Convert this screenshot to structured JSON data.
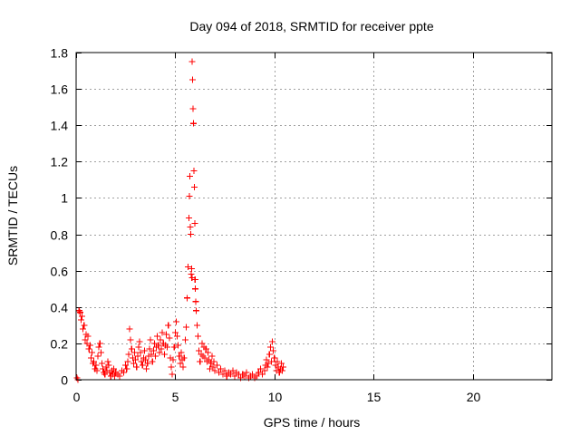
{
  "chart_data": {
    "type": "scatter",
    "title": "Day 094 of 2018, SRMTID for receiver ppte",
    "xlabel": "GPS time / hours",
    "ylabel": "SRMTID / TECUs",
    "xlim": [
      0,
      24
    ],
    "ylim": [
      0,
      1.8
    ],
    "xticks": [
      0,
      5,
      10,
      15,
      20
    ],
    "xtick_labels": [
      "0",
      "5",
      "10",
      "15",
      "20"
    ],
    "yticks": [
      0,
      0.2,
      0.4,
      0.6,
      0.8,
      1,
      1.2,
      1.4,
      1.6,
      1.8
    ],
    "ytick_labels": [
      "0",
      "0.2",
      "0.4",
      "0.6",
      "0.8",
      "1",
      "1.2",
      "1.4",
      "1.6",
      "1.8"
    ],
    "grid": true,
    "marker": "+",
    "series": [
      {
        "name": "SRMTID",
        "color": "#ff0000",
        "points": [
          [
            0.05,
            0.01
          ],
          [
            0.1,
            0.0
          ],
          [
            0.15,
            0.38
          ],
          [
            0.2,
            0.37
          ],
          [
            0.25,
            0.33
          ],
          [
            0.3,
            0.35
          ],
          [
            0.35,
            0.28
          ],
          [
            0.4,
            0.3
          ],
          [
            0.45,
            0.22
          ],
          [
            0.5,
            0.25
          ],
          [
            0.55,
            0.2
          ],
          [
            0.6,
            0.24
          ],
          [
            0.65,
            0.17
          ],
          [
            0.7,
            0.19
          ],
          [
            0.75,
            0.12
          ],
          [
            0.8,
            0.15
          ],
          [
            0.85,
            0.09
          ],
          [
            0.9,
            0.1
          ],
          [
            0.95,
            0.06
          ],
          [
            1.0,
            0.08
          ],
          [
            1.05,
            0.05
          ],
          [
            1.1,
            0.13
          ],
          [
            1.15,
            0.18
          ],
          [
            1.2,
            0.2
          ],
          [
            1.25,
            0.15
          ],
          [
            1.3,
            0.09
          ],
          [
            1.35,
            0.06
          ],
          [
            1.4,
            0.04
          ],
          [
            1.45,
            0.03
          ],
          [
            1.5,
            0.07
          ],
          [
            1.55,
            0.05
          ],
          [
            1.6,
            0.1
          ],
          [
            1.65,
            0.08
          ],
          [
            1.7,
            0.04
          ],
          [
            1.75,
            0.02
          ],
          [
            1.8,
            0.05
          ],
          [
            1.85,
            0.03
          ],
          [
            1.9,
            0.06
          ],
          [
            1.95,
            0.02
          ],
          [
            2.0,
            0.04
          ],
          [
            2.1,
            0.03
          ],
          [
            2.2,
            0.02
          ],
          [
            2.3,
            0.05
          ],
          [
            2.4,
            0.04
          ],
          [
            2.5,
            0.08
          ],
          [
            2.55,
            0.06
          ],
          [
            2.6,
            0.1
          ],
          [
            2.65,
            0.14
          ],
          [
            2.7,
            0.28
          ],
          [
            2.75,
            0.22
          ],
          [
            2.8,
            0.17
          ],
          [
            2.85,
            0.12
          ],
          [
            2.9,
            0.09
          ],
          [
            2.95,
            0.15
          ],
          [
            3.0,
            0.11
          ],
          [
            3.05,
            0.07
          ],
          [
            3.1,
            0.13
          ],
          [
            3.15,
            0.18
          ],
          [
            3.2,
            0.21
          ],
          [
            3.25,
            0.15
          ],
          [
            3.3,
            0.1
          ],
          [
            3.35,
            0.08
          ],
          [
            3.4,
            0.12
          ],
          [
            3.45,
            0.16
          ],
          [
            3.5,
            0.11
          ],
          [
            3.55,
            0.06
          ],
          [
            3.6,
            0.09
          ],
          [
            3.65,
            0.13
          ],
          [
            3.7,
            0.17
          ],
          [
            3.75,
            0.22
          ],
          [
            3.8,
            0.14
          ],
          [
            3.85,
            0.1
          ],
          [
            3.9,
            0.16
          ],
          [
            3.95,
            0.2
          ],
          [
            4.0,
            0.13
          ],
          [
            4.05,
            0.18
          ],
          [
            4.1,
            0.24
          ],
          [
            4.15,
            0.19
          ],
          [
            4.2,
            0.15
          ],
          [
            4.25,
            0.22
          ],
          [
            4.3,
            0.17
          ],
          [
            4.35,
            0.26
          ],
          [
            4.4,
            0.2
          ],
          [
            4.45,
            0.14
          ],
          [
            4.5,
            0.19
          ],
          [
            4.55,
            0.25
          ],
          [
            4.6,
            0.18
          ],
          [
            4.65,
            0.3
          ],
          [
            4.7,
            0.23
          ],
          [
            4.75,
            0.12
          ],
          [
            4.8,
            0.07
          ],
          [
            4.85,
            0.03
          ],
          [
            4.9,
            0.11
          ],
          [
            4.95,
            0.18
          ],
          [
            5.0,
            0.26
          ],
          [
            5.05,
            0.32
          ],
          [
            5.1,
            0.24
          ],
          [
            5.15,
            0.19
          ],
          [
            5.2,
            0.13
          ],
          [
            5.25,
            0.09
          ],
          [
            5.3,
            0.15
          ],
          [
            5.35,
            0.11
          ],
          [
            5.4,
            0.07
          ],
          [
            5.45,
            0.12
          ],
          [
            5.5,
            0.22
          ],
          [
            5.55,
            0.29
          ],
          [
            5.6,
            0.45
          ],
          [
            5.65,
            0.62
          ],
          [
            5.7,
            0.89
          ],
          [
            5.72,
            1.01
          ],
          [
            5.74,
            1.12
          ],
          [
            5.76,
            0.84
          ],
          [
            5.78,
            0.8
          ],
          [
            5.8,
            0.58
          ],
          [
            5.82,
            0.61
          ],
          [
            5.84,
            0.56
          ],
          [
            5.86,
            1.75
          ],
          [
            5.88,
            1.65
          ],
          [
            5.9,
            1.49
          ],
          [
            5.92,
            1.41
          ],
          [
            5.94,
            1.15
          ],
          [
            5.96,
            1.06
          ],
          [
            5.98,
            0.86
          ],
          [
            6.0,
            0.55
          ],
          [
            6.02,
            0.5
          ],
          [
            6.04,
            0.43
          ],
          [
            6.06,
            0.38
          ],
          [
            6.1,
            0.3
          ],
          [
            6.15,
            0.24
          ],
          [
            6.2,
            0.16
          ],
          [
            6.25,
            0.1
          ],
          [
            6.3,
            0.14
          ],
          [
            6.35,
            0.2
          ],
          [
            6.4,
            0.13
          ],
          [
            6.45,
            0.18
          ],
          [
            6.5,
            0.12
          ],
          [
            6.55,
            0.17
          ],
          [
            6.6,
            0.1
          ],
          [
            6.65,
            0.15
          ],
          [
            6.7,
            0.11
          ],
          [
            6.75,
            0.06
          ],
          [
            6.8,
            0.09
          ],
          [
            6.85,
            0.13
          ],
          [
            6.9,
            0.07
          ],
          [
            6.95,
            0.1
          ],
          [
            7.0,
            0.05
          ],
          [
            7.1,
            0.08
          ],
          [
            7.2,
            0.04
          ],
          [
            7.3,
            0.06
          ],
          [
            7.4,
            0.03
          ],
          [
            7.5,
            0.05
          ],
          [
            7.6,
            0.02
          ],
          [
            7.7,
            0.04
          ],
          [
            7.8,
            0.03
          ],
          [
            7.9,
            0.05
          ],
          [
            8.0,
            0.02
          ],
          [
            8.1,
            0.04
          ],
          [
            8.2,
            0.03
          ],
          [
            8.3,
            0.01
          ],
          [
            8.4,
            0.03
          ],
          [
            8.5,
            0.02
          ],
          [
            8.6,
            0.04
          ],
          [
            8.7,
            0.01
          ],
          [
            8.8,
            0.02
          ],
          [
            8.9,
            0.03
          ],
          [
            9.0,
            0.01
          ],
          [
            9.1,
            0.02
          ],
          [
            9.2,
            0.04
          ],
          [
            9.3,
            0.06
          ],
          [
            9.4,
            0.03
          ],
          [
            9.5,
            0.05
          ],
          [
            9.55,
            0.08
          ],
          [
            9.6,
            0.11
          ],
          [
            9.65,
            0.07
          ],
          [
            9.7,
            0.09
          ],
          [
            9.75,
            0.14
          ],
          [
            9.8,
            0.18
          ],
          [
            9.85,
            0.1
          ],
          [
            9.9,
            0.21
          ],
          [
            9.95,
            0.16
          ],
          [
            10.0,
            0.12
          ],
          [
            10.05,
            0.08
          ],
          [
            10.1,
            0.05
          ],
          [
            10.15,
            0.1
          ],
          [
            10.2,
            0.07
          ],
          [
            10.25,
            0.04
          ],
          [
            10.3,
            0.06
          ],
          [
            10.35,
            0.09
          ],
          [
            10.4,
            0.05
          ],
          [
            10.45,
            0.07
          ]
        ]
      }
    ]
  }
}
